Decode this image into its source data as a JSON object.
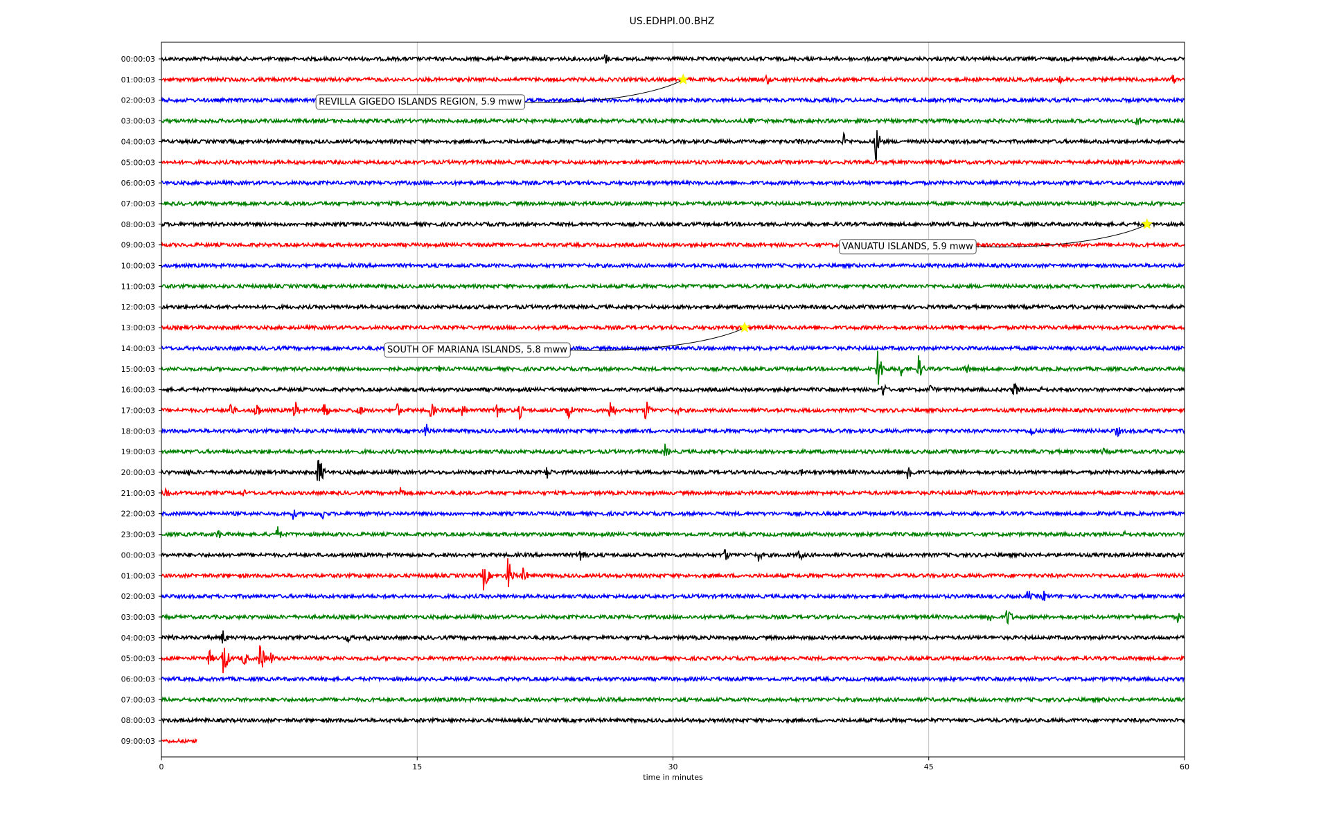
{
  "chart_data": {
    "type": "line",
    "title": "US.EDHPI.00.BHZ",
    "xlabel": "time in minutes",
    "ylabel": "",
    "xlim": [
      0,
      60
    ],
    "x_ticks": [
      0,
      15,
      30,
      45,
      60
    ],
    "grid": "vertical",
    "line_colors": [
      "#000000",
      "#ff0000",
      "#0000ff",
      "#008000"
    ],
    "marker_color": "#ffff00",
    "rows": [
      "00:00:03",
      "01:00:03",
      "02:00:03",
      "03:00:03",
      "04:00:03",
      "05:00:03",
      "06:00:03",
      "07:00:03",
      "08:00:03",
      "09:00:03",
      "10:00:03",
      "11:00:03",
      "12:00:03",
      "13:00:03",
      "14:00:03",
      "15:00:03",
      "16:00:03",
      "17:00:03",
      "18:00:03",
      "19:00:03",
      "20:00:03",
      "21:00:03",
      "22:00:03",
      "23:00:03",
      "00:00:03",
      "01:00:03",
      "02:00:03",
      "03:00:03",
      "04:00:03",
      "05:00:03",
      "06:00:03",
      "07:00:03",
      "08:00:03",
      "09:00:03"
    ],
    "last_row_end_minute": 2.1,
    "events": [
      {
        "label": "REVILLA GIGEDO ISLANDS REGION, 5.9 mww",
        "row": 1,
        "minute": 30.6
      },
      {
        "label": "VANUATU ISLANDS, 5.9 mww",
        "row": 8,
        "minute": 57.8
      },
      {
        "label": "SOUTH OF MARIANA ISLANDS, 5.8 mww",
        "row": 13,
        "minute": 34.2
      }
    ],
    "bursts": [
      {
        "row": 0,
        "minute": 26.0,
        "amp": 0.5
      },
      {
        "row": 1,
        "minute": 35.5,
        "amp": 0.45
      },
      {
        "row": 1,
        "minute": 52.7,
        "amp": 0.35
      },
      {
        "row": 1,
        "minute": 59.3,
        "amp": 0.4
      },
      {
        "row": 3,
        "minute": 34.5,
        "amp": 0.3
      },
      {
        "row": 3,
        "minute": 57.2,
        "amp": 0.5
      },
      {
        "row": 4,
        "minute": 37.3,
        "amp": 0.35
      },
      {
        "row": 4,
        "minute": 40.0,
        "amp": 0.6
      },
      {
        "row": 4,
        "minute": 41.9,
        "amp": 1.4
      },
      {
        "row": 7,
        "minute": 4.1,
        "amp": 0.25
      },
      {
        "row": 13,
        "minute": 46.9,
        "amp": 0.3
      },
      {
        "row": 15,
        "minute": 16.3,
        "amp": 0.25
      },
      {
        "row": 15,
        "minute": 42.0,
        "amp": 1.7
      },
      {
        "row": 15,
        "minute": 43.3,
        "amp": 0.7
      },
      {
        "row": 15,
        "minute": 44.4,
        "amp": 0.9
      },
      {
        "row": 15,
        "minute": 47.2,
        "amp": 0.5
      },
      {
        "row": 16,
        "minute": 42.3,
        "amp": 0.6
      },
      {
        "row": 16,
        "minute": 45.1,
        "amp": 0.45
      },
      {
        "row": 16,
        "minute": 50.0,
        "amp": 0.7
      },
      {
        "row": 16,
        "minute": 51.5,
        "amp": 0.3
      },
      {
        "row": 17,
        "minute": 4.0,
        "amp": 0.8
      },
      {
        "row": 17,
        "minute": 5.5,
        "amp": 0.9
      },
      {
        "row": 17,
        "minute": 7.8,
        "amp": 0.8
      },
      {
        "row": 17,
        "minute": 9.5,
        "amp": 0.9
      },
      {
        "row": 17,
        "minute": 11.5,
        "amp": 0.7
      },
      {
        "row": 17,
        "minute": 13.8,
        "amp": 0.6
      },
      {
        "row": 17,
        "minute": 15.8,
        "amp": 0.7
      },
      {
        "row": 17,
        "minute": 17.6,
        "amp": 0.9
      },
      {
        "row": 17,
        "minute": 19.7,
        "amp": 0.9
      },
      {
        "row": 17,
        "minute": 21.0,
        "amp": 0.6
      },
      {
        "row": 17,
        "minute": 23.8,
        "amp": 0.8
      },
      {
        "row": 17,
        "minute": 26.3,
        "amp": 0.9
      },
      {
        "row": 17,
        "minute": 28.4,
        "amp": 0.9
      },
      {
        "row": 17,
        "minute": 30.2,
        "amp": 0.4
      },
      {
        "row": 18,
        "minute": 7.7,
        "amp": 0.3
      },
      {
        "row": 18,
        "minute": 15.5,
        "amp": 0.6
      },
      {
        "row": 18,
        "minute": 51.0,
        "amp": 0.5
      },
      {
        "row": 18,
        "minute": 56.0,
        "amp": 0.55
      },
      {
        "row": 19,
        "minute": 29.5,
        "amp": 0.6
      },
      {
        "row": 19,
        "minute": 55.2,
        "amp": 0.3
      },
      {
        "row": 20,
        "minute": 1.6,
        "amp": 0.3
      },
      {
        "row": 20,
        "minute": 9.2,
        "amp": 1.4
      },
      {
        "row": 20,
        "minute": 22.6,
        "amp": 0.6
      },
      {
        "row": 20,
        "minute": 37.5,
        "amp": 0.3
      },
      {
        "row": 20,
        "minute": 43.8,
        "amp": 0.9
      },
      {
        "row": 21,
        "minute": 0.2,
        "amp": 0.6
      },
      {
        "row": 21,
        "minute": 4.8,
        "amp": 0.3
      },
      {
        "row": 21,
        "minute": 14.0,
        "amp": 0.6
      },
      {
        "row": 21,
        "minute": 47.4,
        "amp": 0.35
      },
      {
        "row": 22,
        "minute": 7.7,
        "amp": 0.45
      },
      {
        "row": 22,
        "minute": 9.4,
        "amp": 0.5
      },
      {
        "row": 22,
        "minute": 11.8,
        "amp": 0.3
      },
      {
        "row": 23,
        "minute": 3.3,
        "amp": 0.45
      },
      {
        "row": 23,
        "minute": 6.8,
        "amp": 0.6
      },
      {
        "row": 23,
        "minute": 56.4,
        "amp": 0.3
      },
      {
        "row": 24,
        "minute": 24.6,
        "amp": 0.9
      },
      {
        "row": 24,
        "minute": 33.0,
        "amp": 0.6
      },
      {
        "row": 24,
        "minute": 35.0,
        "amp": 0.5
      },
      {
        "row": 24,
        "minute": 37.4,
        "amp": 0.5
      },
      {
        "row": 25,
        "minute": 18.9,
        "amp": 1.1
      },
      {
        "row": 25,
        "minute": 20.3,
        "amp": 1.4
      },
      {
        "row": 25,
        "minute": 21.2,
        "amp": 0.7
      },
      {
        "row": 26,
        "minute": 50.8,
        "amp": 0.55
      },
      {
        "row": 26,
        "minute": 51.7,
        "amp": 0.5
      },
      {
        "row": 27,
        "minute": 48.5,
        "amp": 0.55
      },
      {
        "row": 27,
        "minute": 49.6,
        "amp": 0.8
      },
      {
        "row": 27,
        "minute": 57.0,
        "amp": 0.3
      },
      {
        "row": 27,
        "minute": 59.6,
        "amp": 0.4
      },
      {
        "row": 28,
        "minute": 0.6,
        "amp": 0.35
      },
      {
        "row": 28,
        "minute": 3.6,
        "amp": 0.6
      },
      {
        "row": 28,
        "minute": 10.9,
        "amp": 0.5
      },
      {
        "row": 28,
        "minute": 12.1,
        "amp": 0.3
      },
      {
        "row": 29,
        "minute": 2.8,
        "amp": 0.6
      },
      {
        "row": 29,
        "minute": 3.6,
        "amp": 1.6
      },
      {
        "row": 29,
        "minute": 4.8,
        "amp": 0.7
      },
      {
        "row": 29,
        "minute": 5.8,
        "amp": 1.2
      },
      {
        "row": 29,
        "minute": 6.4,
        "amp": 0.5
      }
    ]
  }
}
